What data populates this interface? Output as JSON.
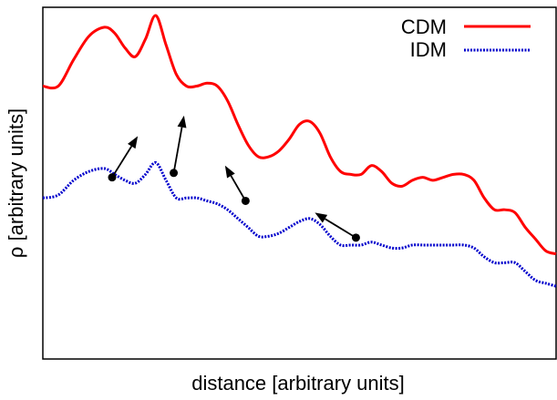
{
  "chart_data": {
    "type": "line",
    "xlabel": "distance [arbitrary units]",
    "ylabel": "ρ [arbitrary units]",
    "xlim": [
      0,
      100
    ],
    "ylim": [
      0,
      100
    ],
    "grid": false,
    "ticks": false,
    "legend_position": "top-right",
    "series": [
      {
        "name": "CDM",
        "color": "#ff0000",
        "style": "solid",
        "x": [
          0,
          3,
          6,
          9,
          12,
          14,
          16,
          18,
          20,
          22,
          24,
          26,
          28,
          30,
          32,
          34,
          36,
          38,
          40,
          42,
          44,
          46,
          48,
          50,
          52,
          54,
          56,
          58,
          60,
          62,
          64,
          66,
          68,
          70,
          72,
          74,
          76,
          78,
          80,
          82,
          84,
          86,
          88,
          90,
          92,
          94,
          96,
          98,
          100
        ],
        "y": [
          76,
          76,
          85,
          93,
          96,
          94,
          89,
          86,
          92,
          100,
          90,
          80,
          76,
          76,
          77,
          76,
          71,
          63,
          56,
          52,
          52,
          54,
          58,
          63,
          64,
          60,
          52,
          47,
          46,
          46,
          49,
          47,
          43,
          42,
          44,
          45,
          44,
          45,
          46,
          46,
          44,
          38,
          34,
          34,
          33,
          28,
          24,
          20,
          19
        ]
      },
      {
        "name": "IDM",
        "color": "#0000cc",
        "style": "dotted",
        "x": [
          0,
          3,
          6,
          9,
          12,
          14,
          16,
          18,
          20,
          22,
          24,
          26,
          28,
          30,
          32,
          34,
          36,
          38,
          40,
          42,
          44,
          46,
          48,
          50,
          52,
          54,
          56,
          58,
          60,
          62,
          64,
          66,
          68,
          70,
          72,
          74,
          76,
          78,
          80,
          82,
          84,
          86,
          88,
          90,
          92,
          94,
          96,
          98,
          100
        ],
        "y": [
          38,
          39,
          44,
          47,
          48,
          46,
          44,
          43,
          46,
          50,
          44,
          38,
          38,
          38,
          37,
          36,
          34,
          31,
          28,
          25,
          25,
          26,
          28,
          30,
          31,
          29,
          25,
          22,
          22,
          22,
          23,
          22,
          21,
          21,
          22,
          22,
          22,
          22,
          22,
          22,
          21,
          18,
          16,
          16,
          16,
          13,
          10,
          9,
          8
        ]
      }
    ],
    "arrows": [
      {
        "from": [
          13.5,
          45
        ],
        "to": [
          18.5,
          59
        ]
      },
      {
        "from": [
          25.5,
          46.5
        ],
        "to": [
          27.5,
          66
        ]
      },
      {
        "from": [
          39.5,
          37
        ],
        "to": [
          35.5,
          49
        ]
      },
      {
        "from": [
          61,
          24.5
        ],
        "to": [
          53,
          33
        ]
      }
    ]
  }
}
